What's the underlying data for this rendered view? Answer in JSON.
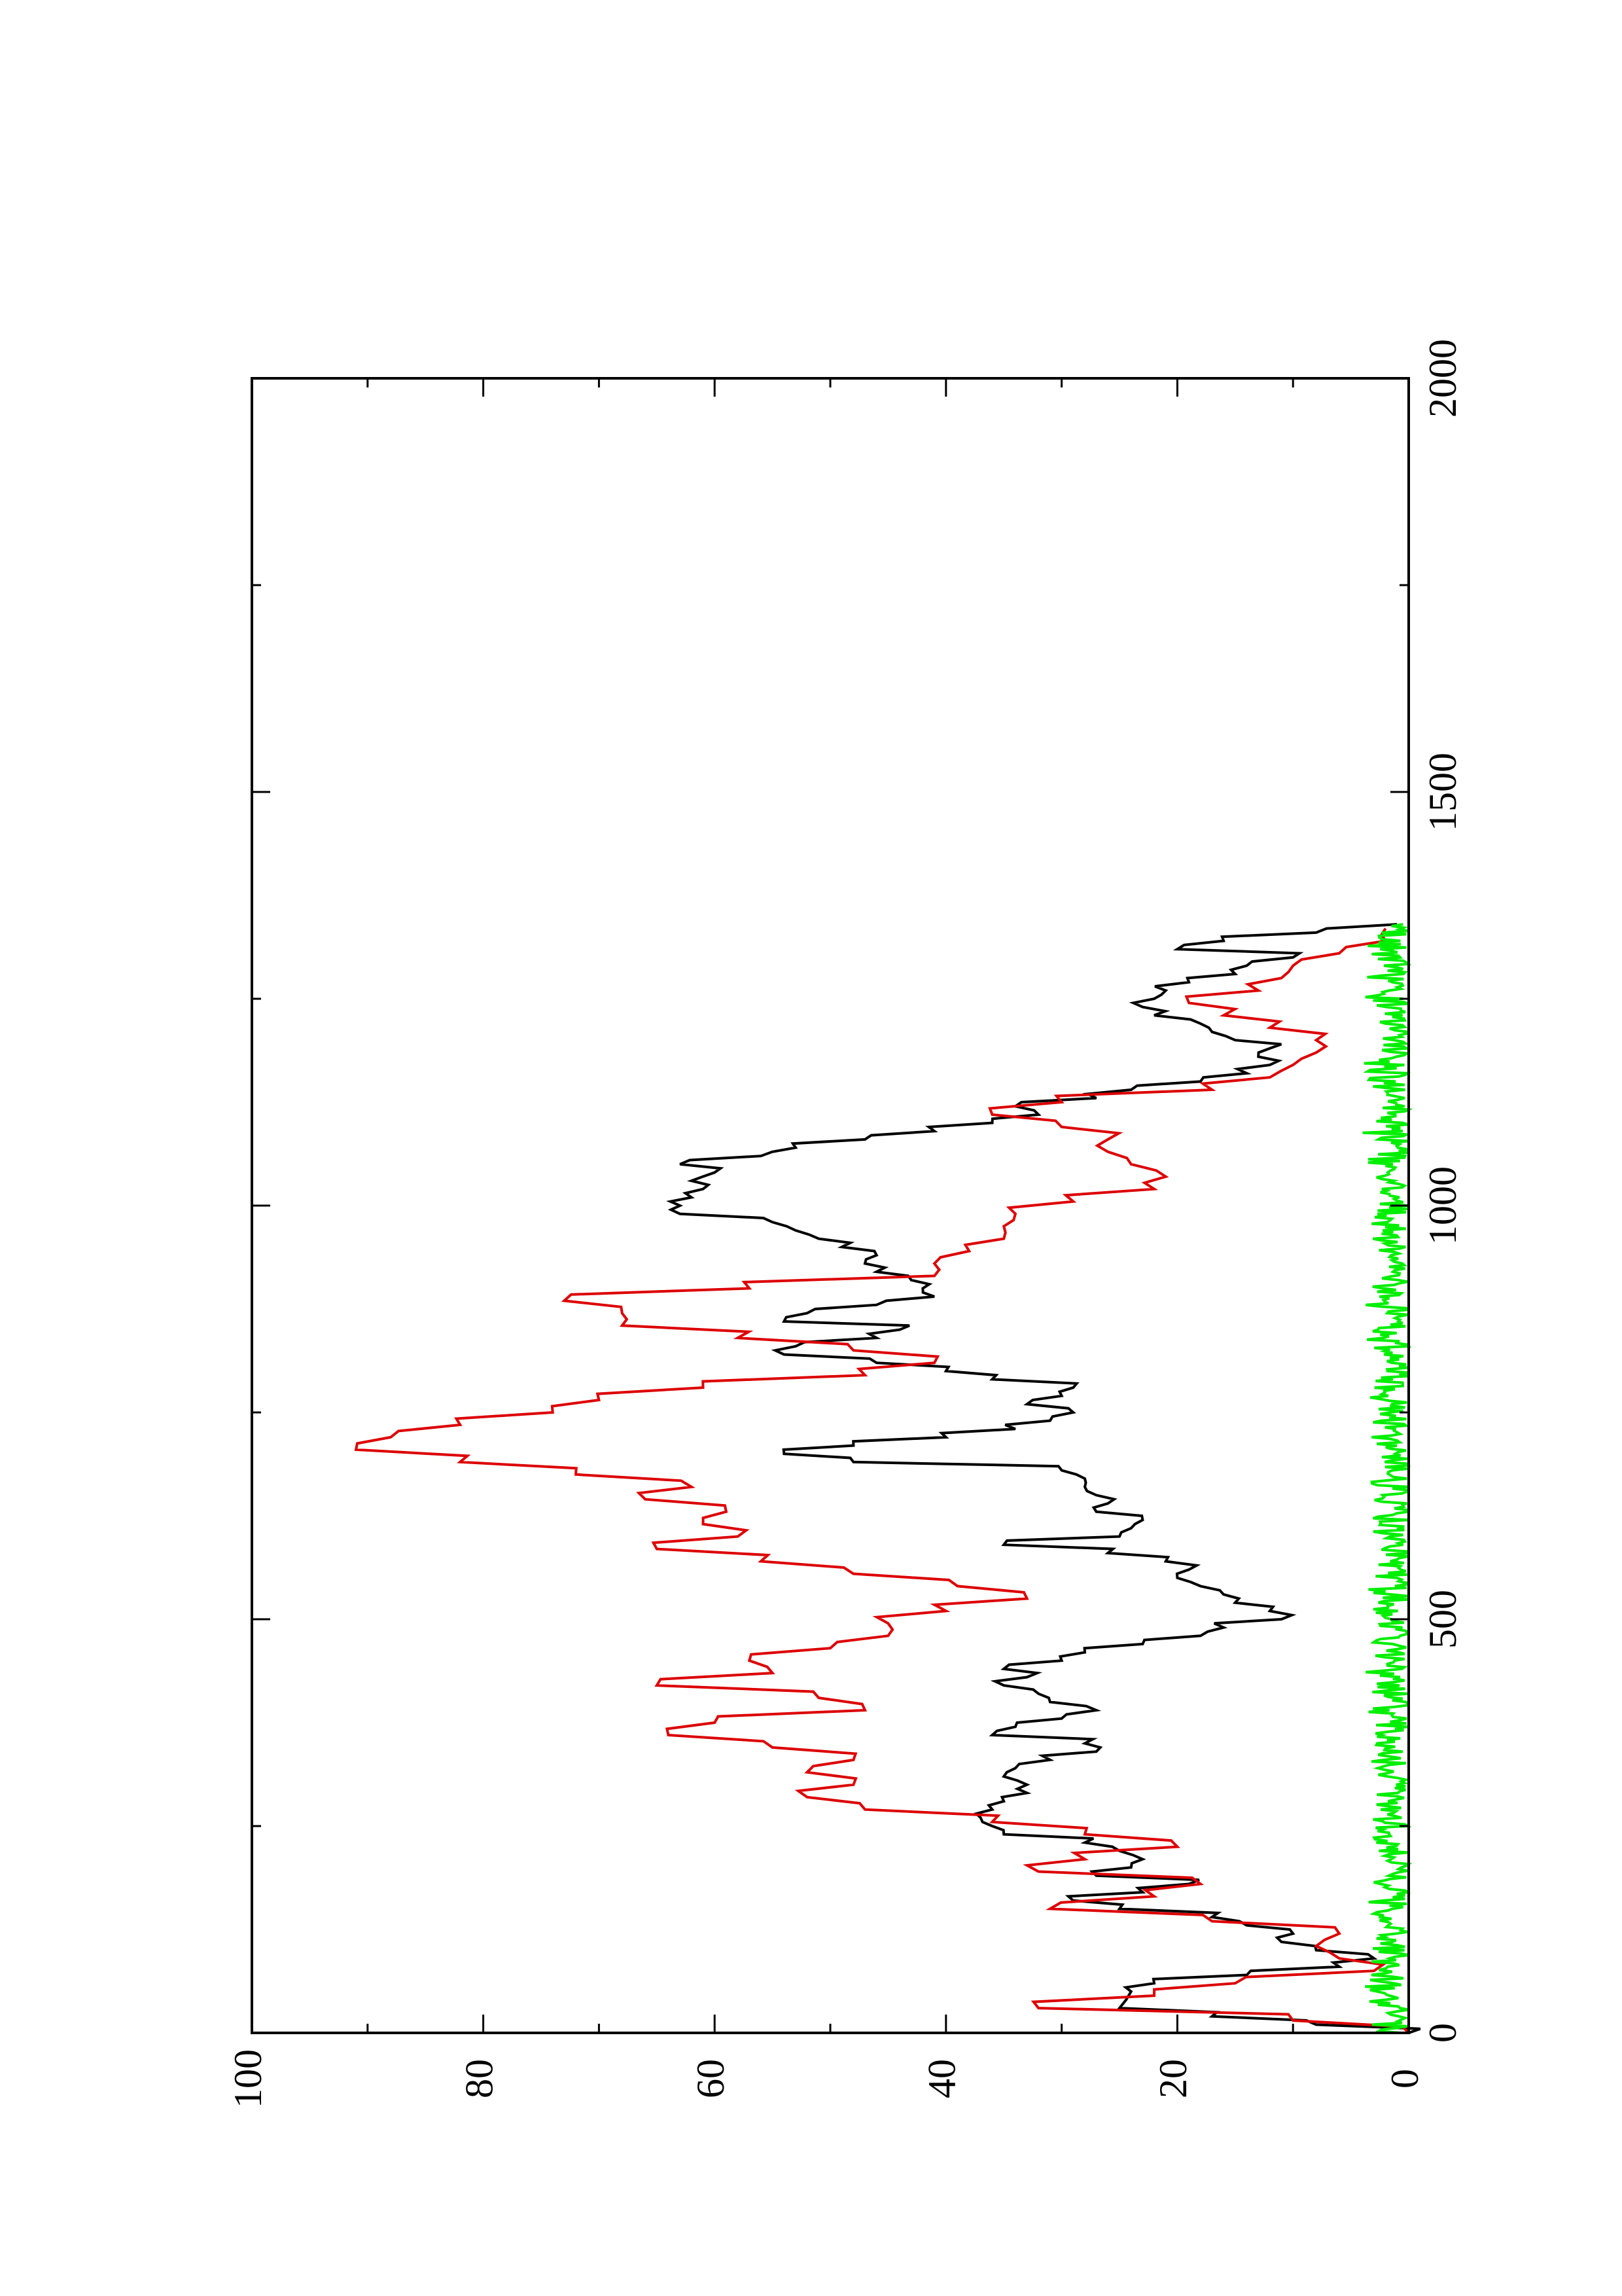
{
  "chart_data": {
    "type": "line",
    "orientation": "rotated-90-counterclockwise",
    "title": "",
    "xlabel": "",
    "ylabel": "",
    "xlim": [
      0,
      2000
    ],
    "ylim": [
      0,
      100
    ],
    "x_ticks": [
      "0",
      "500",
      "1000",
      "1500",
      "2000"
    ],
    "y_ticks": [
      "0",
      "20",
      "40",
      "60",
      "80",
      "100"
    ],
    "grid": false,
    "series": [
      {
        "color": "#000000",
        "x": [
          0,
          10,
          20,
          30,
          50,
          60,
          70,
          80,
          90,
          100,
          110,
          120,
          130,
          140,
          150,
          160,
          170,
          180,
          190,
          200,
          210,
          220,
          230,
          240,
          250,
          260,
          270,
          280,
          290,
          300,
          310,
          320,
          330,
          340,
          350,
          360,
          370,
          380,
          390,
          400,
          410,
          420,
          430,
          440,
          450,
          460,
          470,
          480,
          490,
          500,
          510,
          520,
          530,
          540,
          550,
          560,
          570,
          580,
          590,
          600,
          610,
          620,
          630,
          640,
          650,
          660,
          670,
          680,
          690,
          700,
          710,
          720,
          730,
          740,
          750,
          760,
          770,
          780,
          790,
          800,
          810,
          820,
          830,
          840,
          850,
          860,
          870,
          880,
          890,
          900,
          910,
          920,
          930,
          940,
          950,
          960,
          970,
          980,
          990,
          1000,
          1010,
          1020,
          1030,
          1040,
          1050,
          1060,
          1070,
          1080,
          1090,
          1100,
          1110,
          1120,
          1130,
          1140,
          1150,
          1160,
          1170,
          1180,
          1190,
          1200,
          1210,
          1220,
          1230,
          1240,
          1250,
          1260,
          1270,
          1280,
          1290,
          1300,
          1310,
          1320,
          1330,
          1340
        ],
        "y": [
          0,
          8,
          17,
          25,
          24,
          22,
          14,
          6,
          3,
          8,
          11,
          10,
          14,
          17,
          25,
          29,
          23,
          19,
          27,
          24,
          23,
          25,
          28,
          35,
          36,
          37,
          36,
          35,
          33,
          33,
          35,
          34,
          31,
          27,
          28,
          36,
          34,
          30,
          27,
          31,
          32,
          35,
          33,
          35,
          30,
          28,
          23,
          18,
          16,
          11,
          12,
          15,
          16,
          18,
          20,
          19,
          21,
          26,
          35,
          25,
          24,
          23,
          27,
          26,
          27,
          28,
          28,
          30,
          48,
          54,
          48,
          40,
          34,
          31,
          29,
          33,
          30,
          29,
          36,
          40,
          46,
          54,
          53,
          46,
          44,
          54,
          52,
          46,
          41,
          42,
          43,
          46,
          47,
          46,
          49,
          51,
          53,
          55,
          63,
          63,
          62,
          61,
          62,
          60,
          63,
          56,
          53,
          47,
          41,
          36,
          32,
          34,
          27,
          24,
          18,
          14,
          12,
          13,
          12,
          15,
          17,
          18,
          22,
          23,
          22,
          21,
          19,
          15,
          14,
          10,
          20,
          16,
          8,
          1
        ],
        "data-name": "series-black"
      },
      {
        "color": "#dd0000",
        "x": [
          0,
          15,
          30,
          45,
          60,
          75,
          90,
          105,
          120,
          135,
          150,
          165,
          180,
          195,
          210,
          225,
          240,
          255,
          270,
          285,
          300,
          315,
          330,
          345,
          360,
          375,
          390,
          405,
          420,
          435,
          450,
          465,
          480,
          495,
          510,
          525,
          540,
          555,
          570,
          585,
          600,
          615,
          630,
          645,
          660,
          675,
          690,
          705,
          720,
          735,
          750,
          765,
          780,
          795,
          810,
          825,
          840,
          855,
          870,
          885,
          900,
          915,
          930,
          945,
          960,
          975,
          990,
          1005,
          1020,
          1035,
          1050,
          1065,
          1080,
          1095,
          1110,
          1125,
          1140,
          1155,
          1170,
          1185,
          1200,
          1215,
          1230,
          1245,
          1260,
          1275,
          1290,
          1305,
          1320,
          1335
        ],
        "y": [
          0,
          10,
          32,
          22,
          15,
          3,
          6,
          8,
          6,
          17,
          31,
          22,
          18,
          32,
          28,
          20,
          28,
          36,
          47,
          52,
          48,
          52,
          48,
          55,
          64,
          60,
          47,
          51,
          65,
          55,
          57,
          50,
          45,
          45,
          40,
          33,
          39,
          48,
          56,
          65,
          58,
          61,
          59,
          66,
          62,
          72,
          82,
          91,
          88,
          82,
          74,
          70,
          61,
          47,
          41,
          48,
          58,
          68,
          68,
          73,
          57,
          41,
          41,
          38,
          35,
          35,
          34,
          29,
          22,
          21,
          24,
          26,
          26,
          30,
          36,
          30,
          17,
          12,
          10,
          8,
          8,
          12,
          16,
          19,
          13,
          11,
          10,
          6,
          2,
          2
        ],
        "data-name": "series-red"
      },
      {
        "color": "#00ee00",
        "x": [
          0,
          1340
        ],
        "y_range": [
          0,
          4
        ],
        "noise": true,
        "data-name": "series-green"
      }
    ]
  }
}
